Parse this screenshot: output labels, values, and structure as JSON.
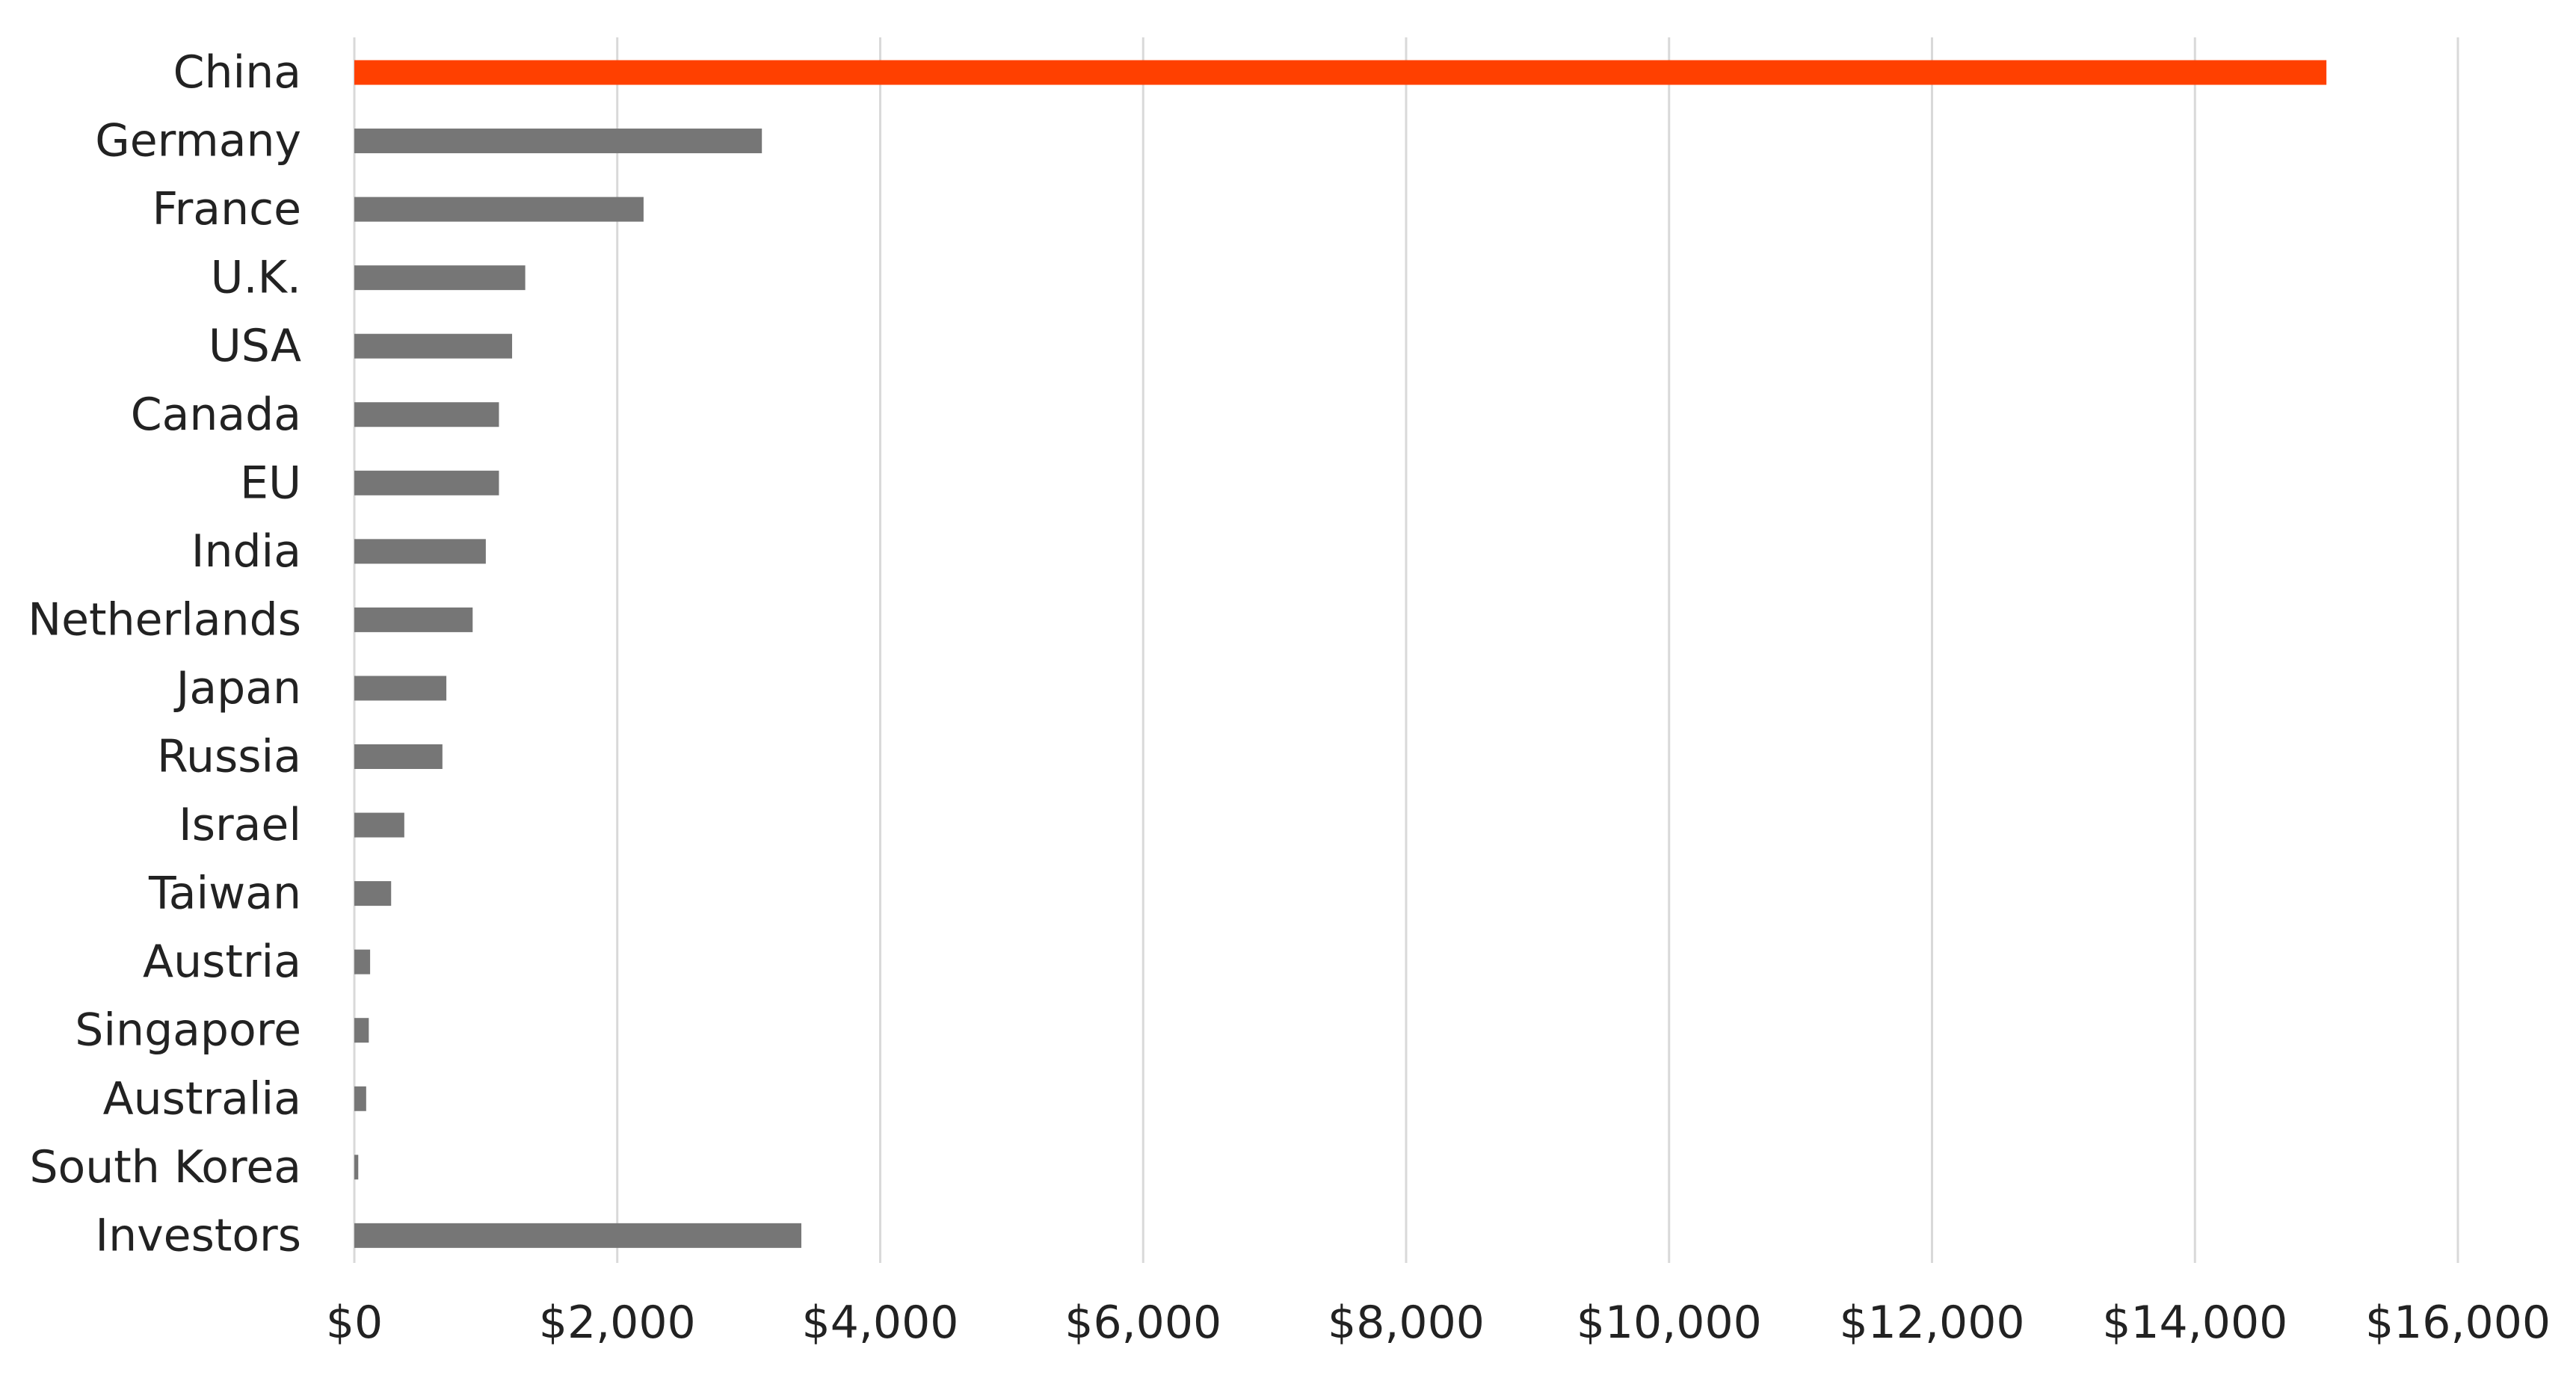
{
  "chart_data": {
    "type": "bar",
    "orientation": "horizontal",
    "categories": [
      "China",
      "Germany",
      "France",
      "U.K.",
      "USA",
      "Canada",
      "EU",
      "India",
      "Netherlands",
      "Japan",
      "Russia",
      "Israel",
      "Taiwan",
      "Austria",
      "Singapore",
      "Australia",
      "South Korea",
      "Investors"
    ],
    "values": [
      15000,
      3100,
      2200,
      1300,
      1200,
      1100,
      1100,
      1000,
      900,
      700,
      670,
      380,
      280,
      120,
      110,
      90,
      30,
      3400
    ],
    "highlight_category": "China",
    "colors": {
      "default_bar": "#767676",
      "highlight_bar": "#ff4000",
      "grid": "#d9d9d9",
      "text": "#222222"
    },
    "xlim": [
      0,
      16000
    ],
    "xticks": [
      0,
      2000,
      4000,
      6000,
      8000,
      10000,
      12000,
      14000,
      16000
    ],
    "xtick_labels": [
      "$0",
      "$2,000",
      "$4,000",
      "$6,000",
      "$8,000",
      "$10,000",
      "$12,000",
      "$14,000",
      "$16,000"
    ],
    "title": "",
    "xlabel": "",
    "ylabel": "",
    "grid": "vertical",
    "legend": "none"
  }
}
